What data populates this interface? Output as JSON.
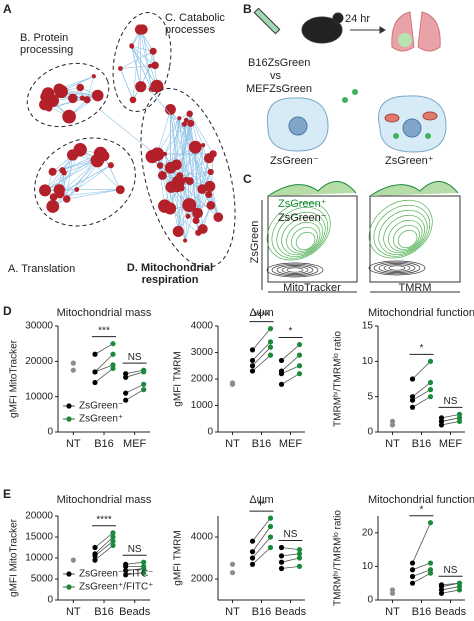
{
  "figure_labels": [
    "A",
    "B",
    "C",
    "D",
    "E"
  ],
  "panel_a": {
    "labels": [
      "B. Protein processing",
      "C. Catabolic processes",
      "A. Translation",
      "D. Mitochondrial respiration"
    ]
  },
  "panel_b": {
    "time": "24 hr",
    "line1": "B16ZsGreen",
    "line2": "vs",
    "line3": "MEFZsGreen",
    "cell_left": "ZsGreen⁻",
    "cell_right": "ZsGreen⁺"
  },
  "panel_c": {
    "legend": [
      "ZsGreen⁺",
      "ZsGreen⁻"
    ],
    "ylabel": "ZsGreen",
    "xlabels": [
      "MitoTracker",
      "TMRM"
    ]
  },
  "chart_data": [
    {
      "type": "paired-scatter",
      "title": "Mitochondrial mass",
      "ylabel": "gMFI MitoTracker",
      "categories": [
        "NT",
        "B16",
        "MEF"
      ],
      "ylim": [
        0,
        30000
      ],
      "yticks": [
        0,
        10000,
        20000,
        30000
      ],
      "legend": "lower left",
      "control": {
        "color": "#8c8c8c",
        "values": [
          19500,
          17500
        ]
      },
      "series": [
        {
          "name": "ZsGreen⁻",
          "color": "#000000",
          "values": [
            null,
            [
              14000,
              17000,
              17000,
              22000
            ],
            [
              9000,
              11000,
              15500,
              16500
            ]
          ]
        },
        {
          "name": "ZsGreen⁺",
          "color": "#1a8a3a",
          "values": [
            null,
            [
              18000,
              19000,
              22000,
              25000
            ],
            [
              12000,
              13500,
              17000,
              17500
            ]
          ]
        }
      ],
      "significance": [
        null,
        "***",
        "NS"
      ]
    },
    {
      "type": "paired-scatter",
      "title": "Δψm",
      "ylabel": "gMFI TMRM",
      "categories": [
        "NT",
        "B16",
        "MEF"
      ],
      "ylim": [
        0,
        4000
      ],
      "yticks": [
        0,
        1000,
        2000,
        3000,
        4000
      ],
      "control": {
        "color": "#8c8c8c",
        "values": [
          1800,
          1850
        ]
      },
      "series": [
        {
          "color": "#000000",
          "values": [
            null,
            [
              2300,
              2500,
              2700,
              3100
            ],
            [
              1800,
              2200,
              2300,
              2700
            ]
          ]
        },
        {
          "color": "#1a8a3a",
          "values": [
            null,
            [
              2900,
              3200,
              3400,
              3900
            ],
            [
              2200,
              2500,
              2900,
              3300
            ]
          ]
        }
      ],
      "significance": [
        null,
        "****",
        "*"
      ]
    },
    {
      "type": "paired-scatter",
      "title": "Mitochondrial function",
      "ylabel": "TMRMʰⁱ/TMRMˡᵒ ratio",
      "categories": [
        "NT",
        "B16",
        "MEF"
      ],
      "ylim": [
        0,
        15
      ],
      "yticks": [
        0,
        5,
        10,
        15
      ],
      "control": {
        "color": "#8c8c8c",
        "values": [
          1,
          1.5
        ]
      },
      "series": [
        {
          "color": "#000000",
          "values": [
            null,
            [
              3.5,
              4.5,
              5,
              7.5
            ],
            [
              1,
              1.5,
              1.5,
              2
            ]
          ]
        },
        {
          "color": "#1a8a3a",
          "values": [
            null,
            [
              5,
              6,
              7,
              10
            ],
            [
              1.5,
              2,
              2,
              2.5
            ]
          ]
        }
      ],
      "significance": [
        null,
        "*",
        "NS"
      ]
    },
    {
      "type": "paired-scatter",
      "title": "Mitochondrial mass",
      "ylabel": "gMFI MitoTracker",
      "categories": [
        "NT",
        "B16",
        "Beads"
      ],
      "ylim": [
        0,
        20000
      ],
      "yticks": [
        0,
        5000,
        10000,
        15000,
        20000
      ],
      "legend": "lower left",
      "control": {
        "color": "#8c8c8c",
        "values": [
          9500
        ]
      },
      "series": [
        {
          "name": "ZsGreen⁻/FITC⁻",
          "color": "#000000",
          "values": [
            null,
            [
              9500,
              10500,
              11000,
              12500
            ],
            [
              6000,
              7000,
              8000,
              8500
            ]
          ]
        },
        {
          "name": "ZsGreen⁺/FITC⁺",
          "color": "#1a8a3a",
          "values": [
            null,
            [
              13000,
              14000,
              15000,
              16000
            ],
            [
              6500,
              7500,
              8000,
              9000
            ]
          ]
        }
      ],
      "significance": [
        null,
        "****",
        "NS"
      ]
    },
    {
      "type": "paired-scatter",
      "title": "Δψm",
      "ylabel": "gMFI TMRM",
      "categories": [
        "NT",
        "B16",
        "Beads"
      ],
      "ylim": [
        1000,
        5000
      ],
      "yticks": [
        2000,
        4000
      ],
      "control": {
        "color": "#8c8c8c",
        "values": [
          2700,
          2300
        ]
      },
      "series": [
        {
          "color": "#000000",
          "values": [
            null,
            [
              2700,
              3000,
              3300,
              3800
            ],
            [
              2500,
              2800,
              3100,
              3500
            ]
          ]
        },
        {
          "color": "#1a8a3a",
          "values": [
            null,
            [
              3500,
              4000,
              4500,
              4900
            ],
            [
              2600,
              3000,
              3200,
              3400
            ]
          ]
        }
      ],
      "significance": [
        null,
        "**",
        "NS"
      ]
    },
    {
      "type": "paired-scatter",
      "title": "Mitochondrial function",
      "ylabel": "TMRMʰⁱ/TMRMˡᵒ ratio",
      "categories": [
        "NT",
        "B16",
        "Beads"
      ],
      "ylim": [
        0,
        25
      ],
      "yticks": [
        0,
        10,
        20
      ],
      "control": {
        "color": "#8c8c8c",
        "values": [
          2,
          3
        ]
      },
      "series": [
        {
          "color": "#000000",
          "values": [
            null,
            [
              5,
              7,
              9,
              11
            ],
            [
              2,
              3,
              4,
              4.5
            ]
          ]
        },
        {
          "color": "#1a8a3a",
          "values": [
            null,
            [
              8,
              9,
              11,
              23
            ],
            [
              3,
              4,
              5,
              5
            ]
          ]
        }
      ],
      "significance": [
        null,
        "*",
        "NS"
      ]
    }
  ]
}
